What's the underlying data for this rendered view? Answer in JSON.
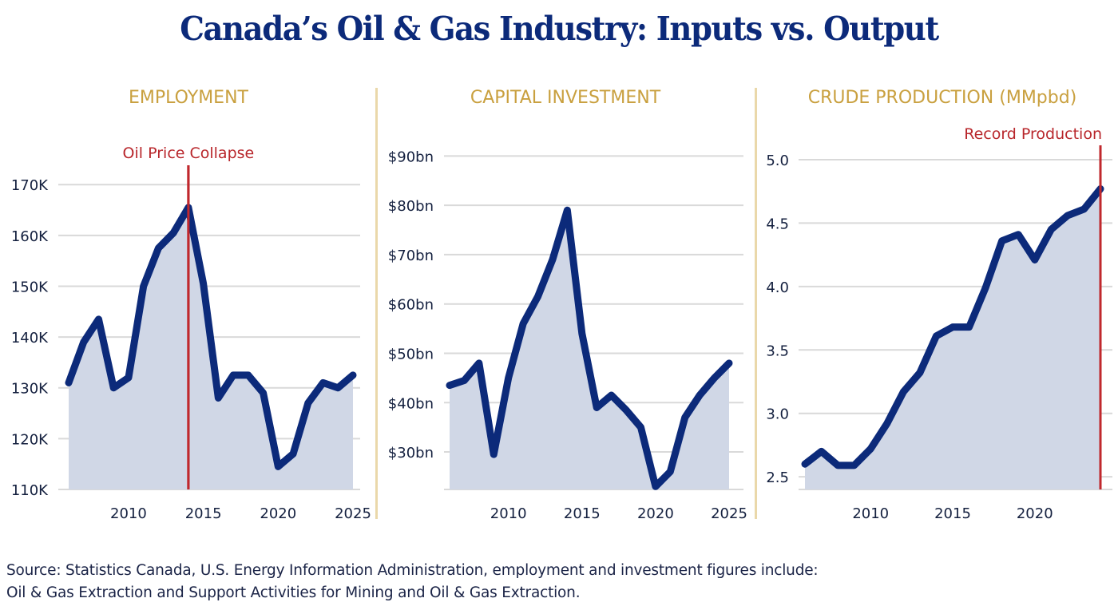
{
  "title": "Canada’s Oil & Gas Industry: Inputs vs. Output",
  "source_line1": "Source: Statistics Canada, U.S. Energy Information Administration, employment and investment figures include:",
  "source_line2": "Oil & Gas Extraction and Support Activities for Mining and Oil & Gas Extraction.",
  "colors": {
    "line": "#0c2a7a",
    "fill": "#d0d7e6",
    "grid": "#d9d9d9",
    "annotation": "#c0282d",
    "panel_title": "#c9a03f",
    "divider": "#ead8aa"
  },
  "chart_data": [
    {
      "type": "area",
      "title": "EMPLOYMENT",
      "xlabel": "",
      "ylabel": "",
      "x": [
        2006,
        2007,
        2008,
        2009,
        2010,
        2011,
        2012,
        2013,
        2014,
        2015,
        2016,
        2017,
        2018,
        2019,
        2020,
        2021,
        2022,
        2023,
        2024,
        2025
      ],
      "values": [
        131000,
        139000,
        143500,
        130000,
        132000,
        150000,
        157500,
        160500,
        165500,
        150500,
        128000,
        132500,
        132500,
        129000,
        114500,
        117000,
        127000,
        131000,
        130000,
        132500
      ],
      "ylim": [
        110000,
        172000
      ],
      "xlim": [
        2006,
        2025
      ],
      "yticks": [
        110000,
        120000,
        130000,
        140000,
        150000,
        160000,
        170000
      ],
      "ytick_labels": [
        "110K",
        "120K",
        "130K",
        "140K",
        "150K",
        "160K",
        "170K"
      ],
      "xticks": [
        2010,
        2015,
        2020,
        2025
      ],
      "xtick_labels": [
        "2010",
        "2015",
        "2020",
        "2025"
      ],
      "annotation": {
        "label": "Oil Price Collapse",
        "x": 2014
      },
      "grid": true
    },
    {
      "type": "area",
      "title": "CAPITAL INVESTMENT",
      "xlabel": "",
      "ylabel": "",
      "x": [
        2006,
        2007,
        2008,
        2009,
        2010,
        2011,
        2012,
        2013,
        2014,
        2015,
        2016,
        2017,
        2018,
        2019,
        2020,
        2021,
        2022,
        2023,
        2024,
        2025
      ],
      "values": [
        43.5,
        44.5,
        48,
        29.5,
        45,
        56,
        61.5,
        69,
        79,
        54,
        39,
        41.5,
        38.5,
        35,
        23,
        26,
        37,
        41.5,
        45,
        48
      ],
      "ylim": [
        22.4,
        92
      ],
      "xlim": [
        2006,
        2025
      ],
      "yticks": [
        30,
        40,
        50,
        60,
        70,
        80,
        90
      ],
      "ytick_labels": [
        "$30bn",
        "$40bn",
        "$50bn",
        "$60bn",
        "$70bn",
        "$80bn",
        "$90bn"
      ],
      "xticks": [
        2010,
        2015,
        2020,
        2025
      ],
      "xtick_labels": [
        "2010",
        "2015",
        "2020",
        "2025"
      ],
      "grid": true
    },
    {
      "type": "area",
      "title": "CRUDE PRODUCTION (MMpbd)",
      "xlabel": "",
      "ylabel": "",
      "x": [
        2006,
        2007,
        2008,
        2009,
        2010,
        2011,
        2012,
        2013,
        2014,
        2015,
        2016,
        2017,
        2018,
        2019,
        2020,
        2021,
        2022,
        2023,
        2024
      ],
      "values": [
        2.6,
        2.7,
        2.59,
        2.59,
        2.72,
        2.92,
        3.17,
        3.32,
        3.61,
        3.68,
        3.68,
        3.99,
        4.36,
        4.41,
        4.21,
        4.45,
        4.56,
        4.61,
        4.77
      ],
      "ylim": [
        2.4,
        5.0
      ],
      "xlim": [
        2006,
        2024
      ],
      "yticks": [
        2.5,
        3.0,
        3.5,
        4.0,
        4.5,
        5.0
      ],
      "ytick_labels": [
        "2.5",
        "3.0",
        "3.5",
        "4.0",
        "4.5",
        "5.0"
      ],
      "xticks": [
        2010,
        2015,
        2020
      ],
      "xtick_labels": [
        "2010",
        "2015",
        "2020"
      ],
      "annotation": {
        "label": "Record Production",
        "x": 2024
      },
      "grid": true
    }
  ]
}
